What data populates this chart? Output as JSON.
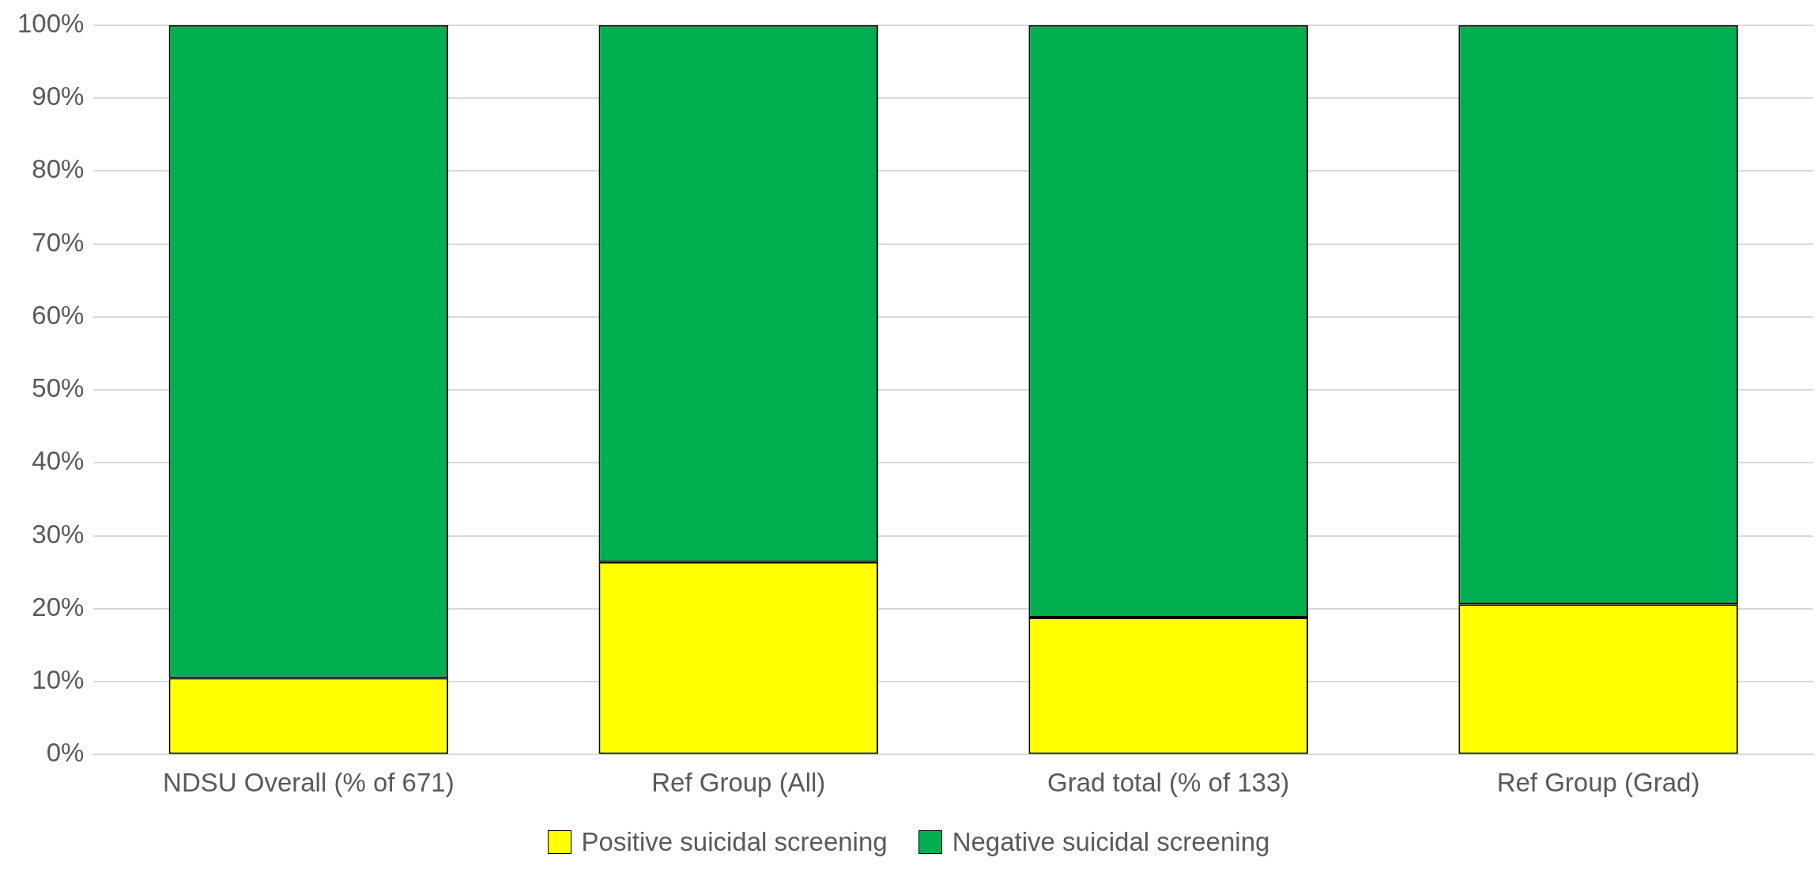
{
  "chart_data": {
    "type": "bar",
    "stacked": true,
    "categories": [
      "NDSU Overall (% of 671)",
      "Ref Group (All)",
      "Grad total (% of 133)",
      "Ref Group (Grad)"
    ],
    "series": [
      {
        "name": "Positive suicidal screening",
        "color": "#ffff00",
        "values": [
          10.5,
          26.4,
          18.8,
          20.6
        ]
      },
      {
        "name": "Negative suicidal screening",
        "color": "#00b050",
        "values": [
          89.5,
          73.6,
          81.2,
          79.4
        ]
      }
    ],
    "ylim": [
      0,
      100
    ],
    "yticks": [
      {
        "value": 0,
        "label": "0%"
      },
      {
        "value": 10,
        "label": "10%"
      },
      {
        "value": 20,
        "label": "20%"
      },
      {
        "value": 30,
        "label": "30%"
      },
      {
        "value": 40,
        "label": "40%"
      },
      {
        "value": 50,
        "label": "50%"
      },
      {
        "value": 60,
        "label": "60%"
      },
      {
        "value": 70,
        "label": "70%"
      },
      {
        "value": 80,
        "label": "80%"
      },
      {
        "value": 90,
        "label": "90%"
      },
      {
        "value": 100,
        "label": "100%"
      }
    ],
    "grid": "y",
    "legend": "bottom"
  }
}
